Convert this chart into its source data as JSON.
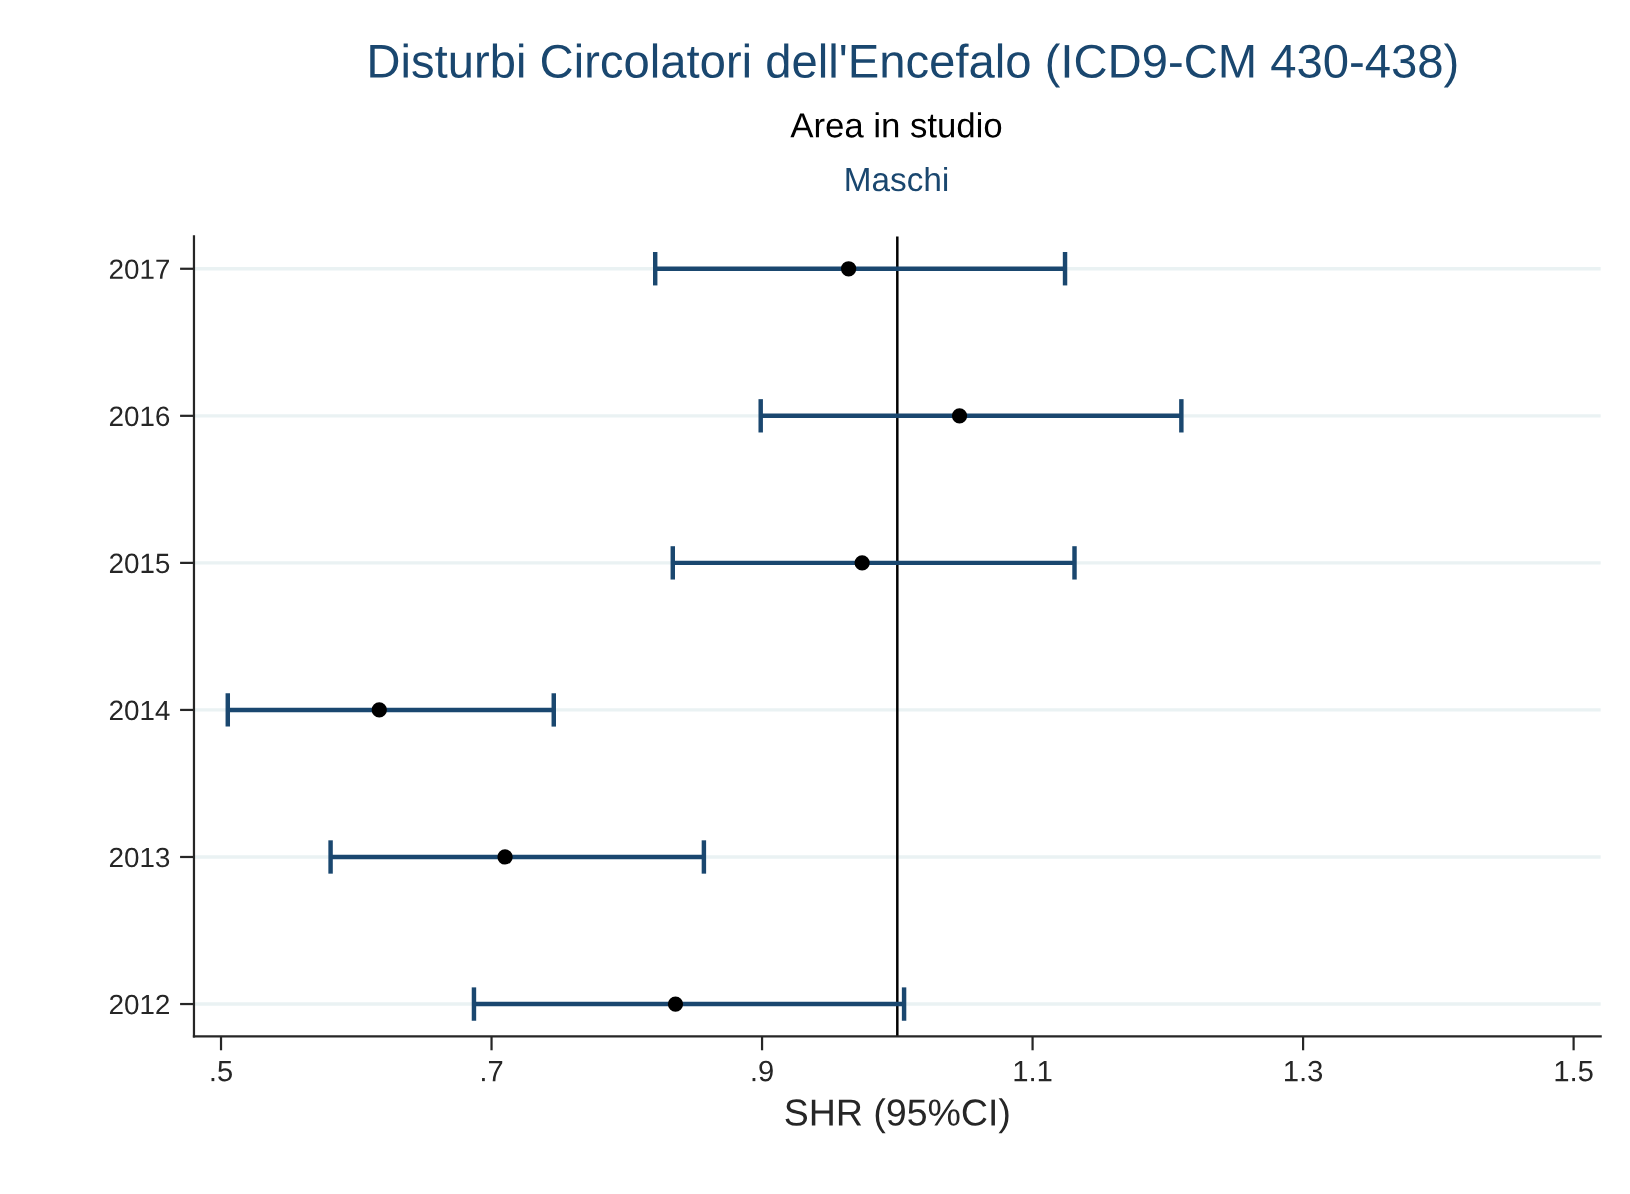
{
  "chart_data": {
    "type": "scatter",
    "title": "Disturbi Circolatori dell'Encefalo (ICD9-CM 430-438)",
    "subtitle": "Area in studio",
    "xlabel": "SHR (95%CI)",
    "orientation": "horizontal",
    "annotations": [
      "Maschi"
    ],
    "categories": [
      "2017",
      "2016",
      "2015",
      "2014",
      "2013",
      "2012"
    ],
    "series": [
      {
        "color": "#000000",
        "values": [
          0.964,
          1.046,
          0.974,
          0.617,
          0.71,
          0.836
        ],
        "errors": [
          [
            0.821,
            1.124
          ],
          [
            0.899,
            1.21
          ],
          [
            0.834,
            1.131
          ],
          [
            0.505,
            0.746
          ],
          [
            0.581,
            0.857
          ],
          [
            0.687,
            1.005
          ]
        ]
      }
    ],
    "marker": "circle",
    "xlim": [
      0.48,
      1.52
    ],
    "xticks": [
      {
        "value": 0.5,
        "label": ".5"
      },
      {
        "value": 0.7,
        "label": ".7"
      },
      {
        "value": 0.9,
        "label": ".9"
      },
      1.1,
      1.3,
      1.5
    ],
    "ref_lines": [
      {
        "axis": "x",
        "value": 1.0,
        "color": "#000000"
      }
    ],
    "grid": "y",
    "legend": false
  }
}
